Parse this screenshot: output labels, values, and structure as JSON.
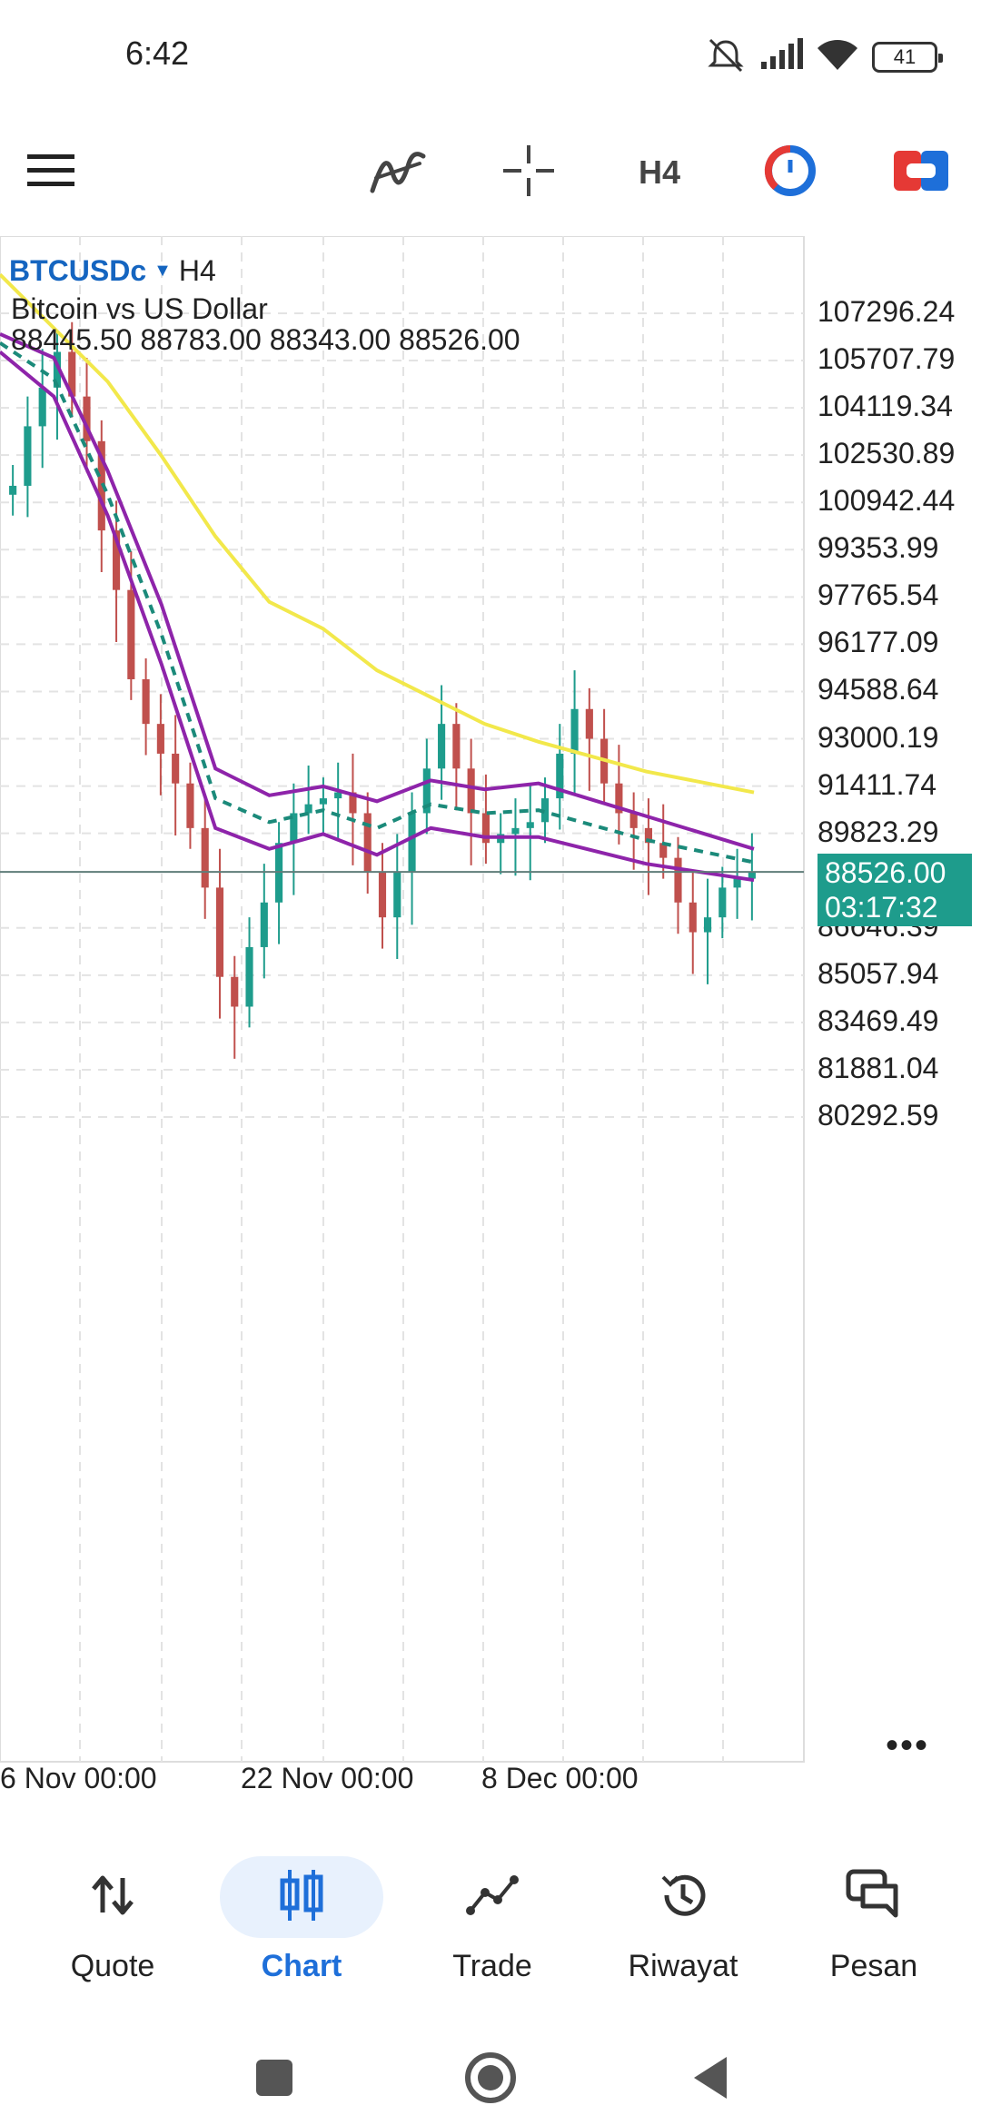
{
  "status_bar": {
    "time": "6:42",
    "battery": "41"
  },
  "toolbar": {
    "timeframe": "H4"
  },
  "chart_header": {
    "symbol": "BTCUSDc",
    "timeframe": "H4",
    "description": "Bitcoin vs US Dollar",
    "ohlc": "88445.50 88783.00 88343.00 88526.00"
  },
  "chart_data": {
    "type": "candlestick",
    "symbol": "BTCUSDc",
    "timeframe": "H4",
    "y_ticks": [
      "107296.24",
      "105707.79",
      "104119.34",
      "102530.89",
      "100942.44",
      "99353.99",
      "97765.54",
      "96177.09",
      "94588.64",
      "93000.19",
      "91411.74",
      "89823.29",
      "86646.39",
      "85057.94",
      "83469.49",
      "81881.04",
      "80292.59"
    ],
    "x_ticks": [
      "6 Nov 00:00",
      "22 Nov 00:00",
      "8 Dec 00:00"
    ],
    "current_price": "88526.00",
    "candle_timer": "03:17:32",
    "ylim": [
      79500,
      108100
    ],
    "series": [
      {
        "name": "MA",
        "color": "#f2e84b",
        "values": [
          108600,
          106800,
          105000,
          102500,
          99800,
          97600,
          96700,
          95300,
          94400,
          93500,
          92900,
          91900,
          91200
        ]
      },
      {
        "name": "BB-upper",
        "color": "#8e24aa",
        "values": [
          106600,
          105800,
          102000,
          97500,
          92000,
          91100,
          91400,
          90900,
          91600,
          91300,
          91500,
          90400,
          89300
        ]
      },
      {
        "name": "BB-middle",
        "color": "#1b8a7a",
        "values": [
          106300,
          105100,
          101200,
          96500,
          91000,
          90200,
          90600,
          90000,
          90800,
          90500,
          90600,
          89600,
          88850
        ]
      },
      {
        "name": "BB-lower",
        "color": "#8e24aa",
        "values": [
          106000,
          104500,
          100500,
          95500,
          90000,
          89300,
          89800,
          89100,
          90000,
          89700,
          89700,
          88800,
          88250
        ]
      }
    ],
    "series_x": [
      0,
      60,
      120,
      180,
      240,
      300,
      360,
      420,
      480,
      540,
      600,
      720,
      840
    ],
    "candles_close": [
      101500,
      103500,
      104800,
      106000,
      104500,
      103000,
      100000,
      98000,
      95000,
      93500,
      92500,
      91500,
      90000,
      88000,
      85000,
      84000,
      86000,
      87500,
      89500,
      90500,
      90800,
      91000,
      91200,
      90500,
      88500,
      87000,
      88500,
      90500,
      92000,
      93500,
      92000,
      90500,
      89500,
      89800,
      90000,
      90200,
      91000,
      92500,
      94000,
      93000,
      91500,
      90500,
      90000,
      89500,
      89000,
      87500,
      86500,
      87000,
      88000,
      88300,
      88526
    ]
  },
  "price_tag": {
    "price": "88526.00",
    "timer": "03:17:32"
  },
  "more_label": "•••",
  "bottom_nav": {
    "items": [
      {
        "label": "Quote"
      },
      {
        "label": "Chart"
      },
      {
        "label": "Trade"
      },
      {
        "label": "Riwayat"
      },
      {
        "label": "Pesan"
      }
    ]
  },
  "colors": {
    "accent": "#1e6fd9",
    "up": "#1e9c8c",
    "down": "#c0504d",
    "ma": "#f2e84b",
    "bands": "#8e24aa"
  }
}
